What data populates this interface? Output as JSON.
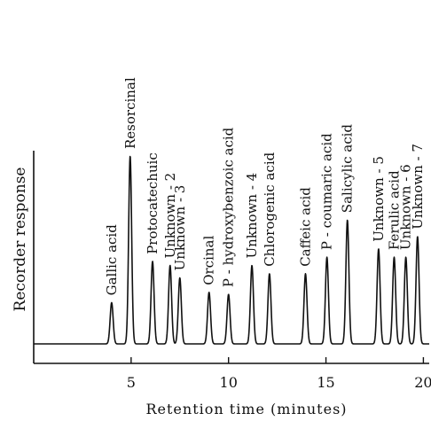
{
  "chart_data": {
    "type": "line",
    "title": "",
    "xlabel": "Retention time (minutes)",
    "ylabel": "Recorder response",
    "xlim": [
      0,
      20.3
    ],
    "ylim": [
      0,
      1
    ],
    "xticks": [
      5,
      10,
      15,
      20
    ],
    "grid": false,
    "baseline": 0.0,
    "peak_width": 0.17,
    "series": [
      {
        "peaks": [
          {
            "label": "Gallic acid",
            "x": 4.0,
            "height": 0.2
          },
          {
            "label": "Resorcinal",
            "x": 4.95,
            "height": 0.91
          },
          {
            "label": "Protocatechuic",
            "x": 6.1,
            "height": 0.4
          },
          {
            "label": "Unknown - 2",
            "x": 7.0,
            "height": 0.38
          },
          {
            "label": "Unknown - 3",
            "x": 7.5,
            "height": 0.32
          },
          {
            "label": "Orcinal",
            "x": 9.0,
            "height": 0.25
          },
          {
            "label": "P - hydroxybenzoic acid",
            "x": 10.0,
            "height": 0.24
          },
          {
            "label": "Unknown - 4",
            "x": 11.2,
            "height": 0.38
          },
          {
            "label": "Chlorogenic acid",
            "x": 12.1,
            "height": 0.34
          },
          {
            "label": "Caffeic acid",
            "x": 13.95,
            "height": 0.34
          },
          {
            "label": "P - coumaric acid",
            "x": 15.05,
            "height": 0.42
          },
          {
            "label": "Salicylic acid",
            "x": 16.1,
            "height": 0.6
          },
          {
            "label": "Unknown - 5",
            "x": 17.7,
            "height": 0.46
          },
          {
            "label": "Ferulic acid",
            "x": 18.5,
            "height": 0.42
          },
          {
            "label": "Unknown - 6",
            "x": 19.1,
            "height": 0.42
          },
          {
            "label": "Unknown - 7",
            "x": 19.7,
            "height": 0.52
          }
        ]
      }
    ]
  }
}
